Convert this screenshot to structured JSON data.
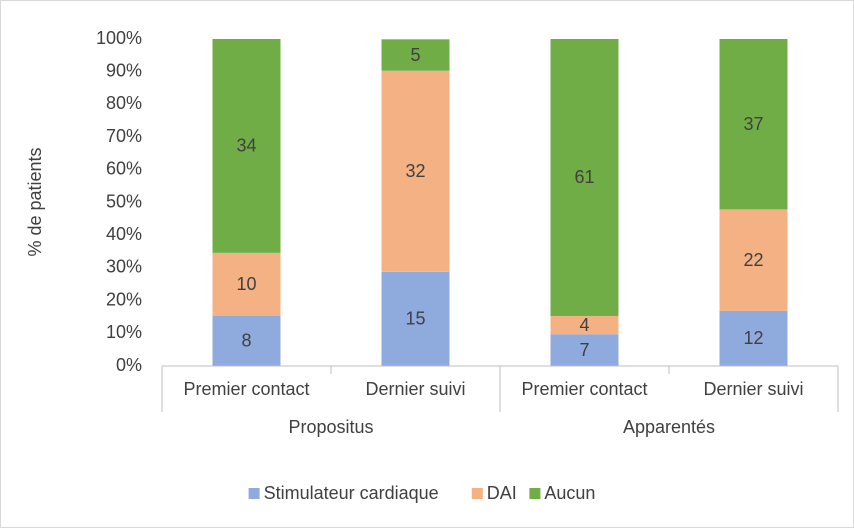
{
  "chart_data": {
    "type": "stacked_bar",
    "y_label": "% de patients",
    "categories": [
      "Premier contact",
      "Dernier suivi",
      "Premier contact",
      "Dernier suivi"
    ],
    "group_labels": [
      "Propositus",
      "Apparentés"
    ],
    "series": [
      {
        "name": "Stimulateur cardiaque",
        "color": "#8faadc",
        "values": [
          15.4,
          28.8,
          9.7,
          16.9
        ],
        "counts": [
          8,
          15,
          7,
          12
        ]
      },
      {
        "name": "DAI",
        "color": "#f4b183",
        "values": [
          19.2,
          61.5,
          5.6,
          31.0
        ],
        "counts": [
          10,
          32,
          4,
          22
        ]
      },
      {
        "name": "Aucun",
        "color": "#70ad47",
        "values": [
          65.4,
          9.6,
          84.7,
          52.1
        ],
        "counts": [
          34,
          5,
          61,
          37
        ]
      }
    ],
    "ylim": [
      0,
      100
    ],
    "yticks": [
      {
        "value": 0,
        "label": "0%"
      },
      {
        "value": 10,
        "label": "10%"
      },
      {
        "value": 20,
        "label": "20%"
      },
      {
        "value": 30,
        "label": "30%"
      },
      {
        "value": 40,
        "label": "40%"
      },
      {
        "value": 50,
        "label": "50%"
      },
      {
        "value": 60,
        "label": "60%"
      },
      {
        "value": 70,
        "label": "70%"
      },
      {
        "value": 80,
        "label": "80%"
      },
      {
        "value": 90,
        "label": "90%"
      },
      {
        "value": 100,
        "label": "100%"
      }
    ],
    "grid": false,
    "legend": "bottom"
  }
}
